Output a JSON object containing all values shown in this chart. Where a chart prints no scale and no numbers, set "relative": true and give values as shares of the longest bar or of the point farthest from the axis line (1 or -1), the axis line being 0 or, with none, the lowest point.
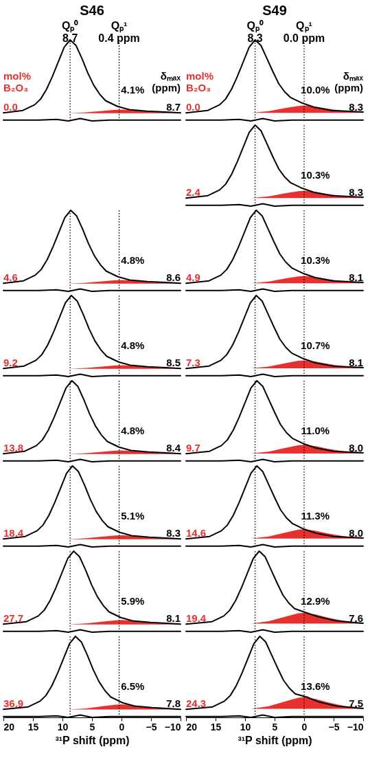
{
  "chart_data": [
    {
      "type": "line",
      "title": "S46",
      "relative": true,
      "xlim": [
        20,
        -10
      ],
      "tick_labels": false,
      "ref_lines": [
        {
          "axis": "x",
          "value": 8.7,
          "label": "Qₚ⁰\n8.7",
          "line_style": "dotted"
        },
        {
          "axis": "x",
          "value": 0.4,
          "label": "Qₚ¹\n0.4 ppm",
          "line_style": "dotted"
        }
      ],
      "annotations": [
        "mol%\nB₂O₃",
        "δₘₐₓ\n(ppm)",
        "0.0",
        "4.1%",
        "8.7"
      ],
      "series": [
        {
          "type": "area",
          "color": "#e8312f",
          "x": [
            9,
            6,
            3,
            1,
            0,
            -2,
            -4,
            -7,
            -10
          ],
          "values": [
            0.095,
            0.105,
            0.125,
            0.138,
            0.14,
            0.133,
            0.12,
            0.105,
            0.096
          ]
        },
        {
          "color": "#000000",
          "x": [
            20,
            16.7,
            14.7,
            13.7,
            12.7,
            11.7,
            10.7,
            9.7,
            8.7,
            7.7,
            6.7,
            5.7,
            4.7,
            3.7,
            2.7,
            0.7,
            -1.3,
            -4.3,
            -10
          ],
          "values": [
            0.1,
            0.13,
            0.2,
            0.27,
            0.39,
            0.55,
            0.73,
            0.91,
            1,
            0.93,
            0.77,
            0.59,
            0.44,
            0.33,
            0.25,
            0.18,
            0.14,
            0.12,
            0.1
          ]
        },
        {
          "color": "#000000",
          "x": [
            20,
            14,
            11,
            9,
            7,
            5,
            2,
            -2,
            -10
          ],
          "values": [
            0.01,
            0.01,
            0.02,
            0,
            0.03,
            0,
            0.01,
            0.01,
            0.01
          ]
        }
      ]
    },
    {
      "type": "line",
      "relative": true,
      "xlim": [
        20,
        -10
      ],
      "tick_labels": false,
      "ref_lines": [
        {
          "axis": "x",
          "value": 8.7,
          "line_style": "dotted"
        },
        {
          "axis": "x",
          "value": 0.4,
          "line_style": "dotted"
        }
      ],
      "annotations": [
        "4.6",
        "4.8%",
        "8.6"
      ],
      "series": [
        {
          "type": "area",
          "color": "#e8312f",
          "x": [
            9,
            6,
            3,
            1,
            0,
            -2,
            -4,
            -7,
            -10
          ],
          "values": [
            0.095,
            0.105,
            0.125,
            0.138,
            0.14,
            0.133,
            0.12,
            0.105,
            0.096
          ]
        },
        {
          "color": "#000000",
          "x": [
            20,
            16.6,
            14.6,
            13.6,
            12.6,
            11.6,
            10.6,
            9.6,
            8.6,
            7.6,
            6.6,
            5.6,
            4.6,
            3.6,
            2.6,
            0.6,
            -1.4,
            -4.4,
            -10
          ],
          "values": [
            0.1,
            0.13,
            0.2,
            0.27,
            0.39,
            0.55,
            0.73,
            0.91,
            1,
            0.93,
            0.77,
            0.59,
            0.44,
            0.33,
            0.25,
            0.18,
            0.14,
            0.12,
            0.1
          ]
        },
        {
          "color": "#000000",
          "x": [
            20,
            14,
            11,
            9,
            7,
            5,
            2,
            -2,
            -10
          ],
          "values": [
            0.01,
            0.01,
            0.02,
            0,
            0.03,
            0,
            0.01,
            0.01,
            0.01
          ]
        }
      ]
    },
    {
      "type": "line",
      "relative": true,
      "xlim": [
        20,
        -10
      ],
      "tick_labels": false,
      "ref_lines": [
        {
          "axis": "x",
          "value": 8.7,
          "line_style": "dotted"
        },
        {
          "axis": "x",
          "value": 0.4,
          "line_style": "dotted"
        }
      ],
      "annotations": [
        "9.2",
        "4.8%",
        "8.5"
      ],
      "series": [
        {
          "type": "area",
          "color": "#e8312f",
          "x": [
            9,
            6,
            3,
            1,
            0,
            -2,
            -4,
            -7,
            -10
          ],
          "values": [
            0.095,
            0.105,
            0.125,
            0.138,
            0.14,
            0.133,
            0.12,
            0.105,
            0.096
          ]
        },
        {
          "color": "#000000",
          "x": [
            20,
            16.5,
            14.5,
            13.5,
            12.5,
            11.5,
            10.5,
            9.5,
            8.5,
            7.5,
            6.5,
            5.5,
            4.5,
            3.5,
            2.5,
            0.5,
            -1.5,
            -4.5,
            -10
          ],
          "values": [
            0.1,
            0.13,
            0.2,
            0.27,
            0.39,
            0.55,
            0.73,
            0.91,
            1,
            0.93,
            0.77,
            0.59,
            0.44,
            0.33,
            0.25,
            0.18,
            0.14,
            0.12,
            0.1
          ]
        },
        {
          "color": "#000000",
          "x": [
            20,
            14,
            11,
            9,
            7,
            5,
            2,
            -2,
            -10
          ],
          "values": [
            0.01,
            0.01,
            0.02,
            0,
            0.03,
            0,
            0.01,
            0.01,
            0.01
          ]
        }
      ]
    },
    {
      "type": "line",
      "relative": true,
      "xlim": [
        20,
        -10
      ],
      "tick_labels": false,
      "ref_lines": [
        {
          "axis": "x",
          "value": 8.7,
          "line_style": "dotted"
        },
        {
          "axis": "x",
          "value": 0.4,
          "line_style": "dotted"
        }
      ],
      "annotations": [
        "13.8",
        "4.8%",
        "8.4"
      ],
      "series": [
        {
          "type": "area",
          "color": "#e8312f",
          "x": [
            9,
            6,
            3,
            1,
            0,
            -2,
            -4,
            -7,
            -10
          ],
          "values": [
            0.095,
            0.105,
            0.125,
            0.138,
            0.14,
            0.133,
            0.12,
            0.105,
            0.096
          ]
        },
        {
          "color": "#000000",
          "x": [
            20,
            16.4,
            14.4,
            13.4,
            12.4,
            11.4,
            10.4,
            9.4,
            8.4,
            7.4,
            6.4,
            5.4,
            4.4,
            3.4,
            2.4,
            0.4,
            -1.6,
            -4.6,
            -10
          ],
          "values": [
            0.1,
            0.13,
            0.2,
            0.27,
            0.39,
            0.55,
            0.73,
            0.91,
            1,
            0.93,
            0.77,
            0.59,
            0.44,
            0.33,
            0.25,
            0.18,
            0.14,
            0.12,
            0.1
          ]
        },
        {
          "color": "#000000",
          "x": [
            20,
            14,
            11,
            9,
            7,
            5,
            2,
            -2,
            -10
          ],
          "values": [
            0.01,
            0.01,
            0.02,
            0,
            0.03,
            0,
            0.01,
            0.01,
            0.01
          ]
        }
      ]
    },
    {
      "type": "line",
      "relative": true,
      "xlim": [
        20,
        -10
      ],
      "tick_labels": false,
      "ref_lines": [
        {
          "axis": "x",
          "value": 8.7,
          "line_style": "dotted"
        },
        {
          "axis": "x",
          "value": 0.4,
          "line_style": "dotted"
        }
      ],
      "annotations": [
        "18.4",
        "5.1%",
        "8.3"
      ],
      "series": [
        {
          "type": "area",
          "color": "#e8312f",
          "x": [
            9,
            6,
            3,
            1,
            0,
            -2,
            -4,
            -7,
            -10
          ],
          "values": [
            0.096,
            0.107,
            0.129,
            0.142,
            0.145,
            0.137,
            0.123,
            0.107,
            0.097
          ]
        },
        {
          "color": "#000000",
          "x": [
            20,
            16.3,
            14.3,
            13.3,
            12.3,
            11.3,
            10.3,
            9.3,
            8.3,
            7.3,
            6.3,
            5.3,
            4.3,
            3.3,
            2.3,
            0.3,
            -1.7,
            -4.7,
            -10
          ],
          "values": [
            0.1,
            0.13,
            0.2,
            0.27,
            0.39,
            0.55,
            0.73,
            0.91,
            1,
            0.93,
            0.77,
            0.59,
            0.44,
            0.33,
            0.25,
            0.18,
            0.14,
            0.12,
            0.1
          ]
        },
        {
          "color": "#000000",
          "x": [
            20,
            14,
            11,
            9,
            7,
            5,
            2,
            -2,
            -10
          ],
          "values": [
            0.01,
            0.01,
            0.02,
            0,
            0.03,
            0,
            0.01,
            0.01,
            0.01
          ]
        }
      ]
    },
    {
      "type": "line",
      "relative": true,
      "xlim": [
        20,
        -10
      ],
      "tick_labels": false,
      "ref_lines": [
        {
          "axis": "x",
          "value": 8.7,
          "line_style": "dotted"
        },
        {
          "axis": "x",
          "value": 0.4,
          "line_style": "dotted"
        }
      ],
      "annotations": [
        "27.7",
        "5.9%",
        "8.1"
      ],
      "series": [
        {
          "type": "area",
          "color": "#e8312f",
          "x": [
            9,
            6,
            3,
            1,
            0,
            -2,
            -4,
            -7,
            -10
          ],
          "values": [
            0.096,
            0.108,
            0.132,
            0.147,
            0.15,
            0.141,
            0.126,
            0.108,
            0.097
          ]
        },
        {
          "color": "#000000",
          "x": [
            20,
            16.1,
            14.1,
            13.1,
            12.1,
            11.1,
            10.1,
            9.1,
            8.1,
            7.1,
            6.1,
            5.1,
            4.1,
            3.1,
            2.1,
            0.1,
            -1.9,
            -4.9,
            -10
          ],
          "values": [
            0.1,
            0.13,
            0.2,
            0.27,
            0.39,
            0.55,
            0.73,
            0.91,
            1,
            0.93,
            0.77,
            0.59,
            0.44,
            0.33,
            0.25,
            0.18,
            0.14,
            0.12,
            0.1
          ]
        },
        {
          "color": "#000000",
          "x": [
            20,
            14,
            11,
            9,
            7,
            5,
            2,
            -2,
            -10
          ],
          "values": [
            0.01,
            0.01,
            0.02,
            0,
            0.03,
            0,
            0.01,
            0.01,
            0.01
          ]
        }
      ]
    },
    {
      "type": "line",
      "relative": true,
      "xlim": [
        20,
        -10
      ],
      "xticks": [
        20,
        15,
        10,
        5,
        0,
        -5,
        -10
      ],
      "xlabel": "³¹P shift (ppm)",
      "ref_lines": [
        {
          "axis": "x",
          "value": 8.7,
          "line_style": "dotted"
        },
        {
          "axis": "x",
          "value": 0.4,
          "line_style": "dotted"
        }
      ],
      "annotations": [
        "36.9",
        "6.5%",
        "7.8"
      ],
      "series": [
        {
          "type": "area",
          "color": "#e8312f",
          "x": [
            9,
            6,
            3,
            1,
            0,
            -2,
            -4,
            -7,
            -10
          ],
          "values": [
            0.097,
            0.111,
            0.139,
            0.157,
            0.16,
            0.15,
            0.132,
            0.111,
            0.098
          ]
        },
        {
          "color": "#000000",
          "x": [
            20,
            15.8,
            13.8,
            12.8,
            11.8,
            10.8,
            9.8,
            8.8,
            7.8,
            6.8,
            5.8,
            4.8,
            3.8,
            2.8,
            1.8,
            -0.2,
            -2.2,
            -5.2,
            -10
          ],
          "values": [
            0.1,
            0.13,
            0.2,
            0.27,
            0.39,
            0.55,
            0.73,
            0.91,
            1,
            0.93,
            0.77,
            0.59,
            0.44,
            0.33,
            0.25,
            0.18,
            0.14,
            0.12,
            0.1
          ]
        },
        {
          "color": "#000000",
          "x": [
            20,
            14,
            11,
            9,
            7,
            5,
            2,
            -2,
            -10
          ],
          "values": [
            0.01,
            0.01,
            0.02,
            0,
            0.03,
            0,
            0.01,
            0.01,
            0.01
          ]
        }
      ]
    },
    {
      "type": "line",
      "title": "S49",
      "relative": true,
      "xlim": [
        20,
        -10
      ],
      "tick_labels": false,
      "ref_lines": [
        {
          "axis": "x",
          "value": 8.3,
          "label": "Qₚ⁰\n8.3",
          "line_style": "dotted"
        },
        {
          "axis": "x",
          "value": 0.0,
          "label": "Qₚ¹\n0.0 ppm",
          "line_style": "dotted"
        }
      ],
      "annotations": [
        "mol%\nB₂O₃",
        "δₘₐₓ\n(ppm)",
        "0.0",
        "10.0%",
        "8.3"
      ],
      "series": [
        {
          "type": "area",
          "color": "#e8312f",
          "x": [
            9,
            6,
            3,
            1,
            0,
            -2,
            -4,
            -7,
            -10
          ],
          "values": [
            0.1,
            0.12,
            0.16,
            0.185,
            0.19,
            0.175,
            0.15,
            0.12,
            0.102
          ]
        },
        {
          "color": "#000000",
          "x": [
            20,
            16.3,
            14.3,
            13.3,
            12.3,
            11.3,
            10.3,
            9.3,
            8.3,
            7.3,
            6.3,
            5.3,
            4.3,
            3.3,
            2.3,
            0.3,
            -1.7,
            -4.7,
            -10
          ],
          "values": [
            0.1,
            0.13,
            0.2,
            0.27,
            0.39,
            0.55,
            0.73,
            0.91,
            1,
            0.93,
            0.77,
            0.61,
            0.46,
            0.36,
            0.29,
            0.22,
            0.17,
            0.13,
            0.11
          ]
        },
        {
          "color": "#000000",
          "x": [
            20,
            14,
            11,
            9,
            7,
            5,
            2,
            -2,
            -10
          ],
          "values": [
            0.01,
            0.01,
            0.02,
            0,
            0.03,
            0,
            0.01,
            0.01,
            0.01
          ]
        }
      ]
    },
    {
      "type": "line",
      "relative": true,
      "xlim": [
        20,
        -10
      ],
      "tick_labels": false,
      "ref_lines": [
        {
          "axis": "x",
          "value": 8.3,
          "line_style": "dotted"
        },
        {
          "axis": "x",
          "value": 0.0,
          "line_style": "dotted"
        }
      ],
      "annotations": [
        "2.4",
        "10.3%",
        "8.3"
      ],
      "series": [
        {
          "type": "area",
          "color": "#e8312f",
          "x": [
            9,
            6,
            3,
            1,
            0,
            -2,
            -4,
            -7,
            -10
          ],
          "values": [
            0.1,
            0.12,
            0.16,
            0.185,
            0.19,
            0.175,
            0.15,
            0.12,
            0.102
          ]
        },
        {
          "color": "#000000",
          "x": [
            20,
            16.3,
            14.3,
            13.3,
            12.3,
            11.3,
            10.3,
            9.3,
            8.3,
            7.3,
            6.3,
            5.3,
            4.3,
            3.3,
            2.3,
            0.3,
            -1.7,
            -4.7,
            -10
          ],
          "values": [
            0.1,
            0.13,
            0.2,
            0.27,
            0.39,
            0.55,
            0.73,
            0.91,
            1,
            0.93,
            0.77,
            0.61,
            0.46,
            0.36,
            0.29,
            0.22,
            0.17,
            0.13,
            0.11
          ]
        },
        {
          "color": "#000000",
          "x": [
            20,
            14,
            11,
            9,
            7,
            5,
            2,
            -2,
            -10
          ],
          "values": [
            0.01,
            0.01,
            0.02,
            0,
            0.03,
            0,
            0.01,
            0.01,
            0.01
          ]
        }
      ]
    },
    {
      "type": "line",
      "relative": true,
      "xlim": [
        20,
        -10
      ],
      "tick_labels": false,
      "ref_lines": [
        {
          "axis": "x",
          "value": 8.3,
          "line_style": "dotted"
        },
        {
          "axis": "x",
          "value": 0.0,
          "line_style": "dotted"
        }
      ],
      "annotations": [
        "4.9",
        "10.3%",
        "8.1"
      ],
      "series": [
        {
          "type": "area",
          "color": "#e8312f",
          "x": [
            9,
            6,
            3,
            1,
            0,
            -2,
            -4,
            -7,
            -10
          ],
          "values": [
            0.1,
            0.12,
            0.16,
            0.185,
            0.19,
            0.175,
            0.15,
            0.12,
            0.102
          ]
        },
        {
          "color": "#000000",
          "x": [
            20,
            16.1,
            14.1,
            13.1,
            12.1,
            11.1,
            10.1,
            9.1,
            8.1,
            7.1,
            6.1,
            5.1,
            4.1,
            3.1,
            2.1,
            0.1,
            -1.9,
            -4.9,
            -10
          ],
          "values": [
            0.1,
            0.13,
            0.2,
            0.27,
            0.39,
            0.55,
            0.73,
            0.91,
            1,
            0.93,
            0.77,
            0.61,
            0.46,
            0.36,
            0.29,
            0.22,
            0.17,
            0.13,
            0.11
          ]
        },
        {
          "color": "#000000",
          "x": [
            20,
            14,
            11,
            9,
            7,
            5,
            2,
            -2,
            -10
          ],
          "values": [
            0.01,
            0.01,
            0.02,
            0,
            0.03,
            0,
            0.01,
            0.01,
            0.01
          ]
        }
      ]
    },
    {
      "type": "line",
      "relative": true,
      "xlim": [
        20,
        -10
      ],
      "tick_labels": false,
      "ref_lines": [
        {
          "axis": "x",
          "value": 8.3,
          "line_style": "dotted"
        },
        {
          "axis": "x",
          "value": 0.0,
          "line_style": "dotted"
        }
      ],
      "annotations": [
        "7.3",
        "10.7%",
        "8.1"
      ],
      "series": [
        {
          "type": "area",
          "color": "#e8312f",
          "x": [
            9,
            6,
            3,
            1,
            0,
            -2,
            -4,
            -7,
            -10
          ],
          "values": [
            0.101,
            0.123,
            0.167,
            0.195,
            0.2,
            0.184,
            0.156,
            0.123,
            0.102
          ]
        },
        {
          "color": "#000000",
          "x": [
            20,
            16.1,
            14.1,
            13.1,
            12.1,
            11.1,
            10.1,
            9.1,
            8.1,
            7.1,
            6.1,
            5.1,
            4.1,
            3.1,
            2.1,
            0.1,
            -1.9,
            -4.9,
            -10
          ],
          "values": [
            0.1,
            0.13,
            0.2,
            0.27,
            0.39,
            0.55,
            0.73,
            0.91,
            1,
            0.93,
            0.77,
            0.61,
            0.46,
            0.36,
            0.29,
            0.22,
            0.17,
            0.13,
            0.11
          ]
        },
        {
          "color": "#000000",
          "x": [
            20,
            14,
            11,
            9,
            7,
            5,
            2,
            -2,
            -10
          ],
          "values": [
            0.01,
            0.01,
            0.02,
            0,
            0.03,
            0,
            0.01,
            0.01,
            0.01
          ]
        }
      ]
    },
    {
      "type": "line",
      "relative": true,
      "xlim": [
        20,
        -10
      ],
      "tick_labels": false,
      "ref_lines": [
        {
          "axis": "x",
          "value": 8.3,
          "line_style": "dotted"
        },
        {
          "axis": "x",
          "value": 0.0,
          "line_style": "dotted"
        }
      ],
      "annotations": [
        "9.7",
        "11.0%",
        "8.0"
      ],
      "series": [
        {
          "type": "area",
          "color": "#e8312f",
          "x": [
            9,
            6,
            3,
            1,
            0,
            -2,
            -4,
            -7,
            -10
          ],
          "values": [
            0.102,
            0.126,
            0.174,
            0.204,
            0.21,
            0.192,
            0.162,
            0.126,
            0.104
          ]
        },
        {
          "color": "#000000",
          "x": [
            20,
            16,
            14,
            13,
            12,
            11,
            10,
            9,
            8,
            7,
            6,
            5,
            4,
            3,
            2,
            0,
            -2,
            -5,
            -10
          ],
          "values": [
            0.1,
            0.13,
            0.2,
            0.27,
            0.39,
            0.55,
            0.73,
            0.91,
            1,
            0.93,
            0.77,
            0.61,
            0.46,
            0.36,
            0.29,
            0.22,
            0.17,
            0.13,
            0.11
          ]
        },
        {
          "color": "#000000",
          "x": [
            20,
            14,
            11,
            9,
            7,
            5,
            2,
            -2,
            -10
          ],
          "values": [
            0.01,
            0.01,
            0.02,
            0,
            0.03,
            0,
            0.01,
            0.01,
            0.01
          ]
        }
      ]
    },
    {
      "type": "line",
      "relative": true,
      "xlim": [
        20,
        -10
      ],
      "tick_labels": false,
      "ref_lines": [
        {
          "axis": "x",
          "value": 8.3,
          "line_style": "dotted"
        },
        {
          "axis": "x",
          "value": 0.0,
          "line_style": "dotted"
        }
      ],
      "annotations": [
        "14.6",
        "11.3%",
        "8.0"
      ],
      "series": [
        {
          "type": "area",
          "color": "#e8312f",
          "x": [
            9,
            6,
            3,
            1,
            0,
            -2,
            -4,
            -7,
            -10
          ],
          "values": [
            0.103,
            0.129,
            0.181,
            0.214,
            0.22,
            0.2,
            0.168,
            0.129,
            0.106
          ]
        },
        {
          "color": "#000000",
          "x": [
            20,
            16,
            14,
            13,
            12,
            11,
            10,
            9,
            8,
            7,
            6,
            5,
            4,
            3,
            2,
            0,
            -2,
            -5,
            -10
          ],
          "values": [
            0.1,
            0.13,
            0.2,
            0.27,
            0.39,
            0.55,
            0.73,
            0.91,
            1,
            0.93,
            0.77,
            0.61,
            0.46,
            0.36,
            0.29,
            0.22,
            0.17,
            0.13,
            0.11
          ]
        },
        {
          "color": "#000000",
          "x": [
            20,
            14,
            11,
            9,
            7,
            5,
            2,
            -2,
            -10
          ],
          "values": [
            0.01,
            0.01,
            0.02,
            0,
            0.03,
            0,
            0.01,
            0.01,
            0.01
          ]
        }
      ]
    },
    {
      "type": "line",
      "relative": true,
      "xlim": [
        20,
        -10
      ],
      "tick_labels": false,
      "ref_lines": [
        {
          "axis": "x",
          "value": 8.3,
          "line_style": "dotted"
        },
        {
          "axis": "x",
          "value": 0.0,
          "line_style": "dotted"
        }
      ],
      "annotations": [
        "19.4",
        "12.9%",
        "7.6"
      ],
      "series": [
        {
          "type": "area",
          "color": "#e8312f",
          "x": [
            9,
            6,
            3,
            1,
            0,
            -2,
            -4,
            -7,
            -10
          ],
          "values": [
            0.105,
            0.135,
            0.195,
            0.233,
            0.24,
            0.218,
            0.18,
            0.135,
            0.108
          ]
        },
        {
          "color": "#000000",
          "x": [
            20,
            15.6,
            13.6,
            12.6,
            11.6,
            10.6,
            9.6,
            8.6,
            7.6,
            6.6,
            5.6,
            4.6,
            3.6,
            2.6,
            1.6,
            -0.4,
            -2.4,
            -5.4,
            -10
          ],
          "values": [
            0.1,
            0.13,
            0.2,
            0.27,
            0.39,
            0.55,
            0.73,
            0.91,
            1,
            0.93,
            0.77,
            0.61,
            0.46,
            0.36,
            0.29,
            0.24,
            0.19,
            0.14,
            0.11
          ]
        },
        {
          "color": "#000000",
          "x": [
            20,
            14,
            11,
            9,
            7,
            5,
            2,
            -2,
            -10
          ],
          "values": [
            0.01,
            0.01,
            0.02,
            0,
            0.03,
            0,
            0.01,
            0.01,
            0.01
          ]
        }
      ]
    },
    {
      "type": "line",
      "relative": true,
      "xlim": [
        20,
        -10
      ],
      "xticks": [
        20,
        15,
        10,
        5,
        0,
        -5,
        -10
      ],
      "xlabel": "³¹P shift (ppm)",
      "ref_lines": [
        {
          "axis": "x",
          "value": 8.3,
          "line_style": "dotted"
        },
        {
          "axis": "x",
          "value": 0.0,
          "line_style": "dotted"
        }
      ],
      "annotations": [
        "24.3",
        "13.6%",
        "7.5"
      ],
      "series": [
        {
          "type": "area",
          "color": "#e8312f",
          "x": [
            9,
            6,
            3,
            1,
            0,
            -2,
            -4,
            -7,
            -10
          ],
          "values": [
            0.106,
            0.138,
            0.202,
            0.242,
            0.25,
            0.226,
            0.186,
            0.138,
            0.109
          ]
        },
        {
          "color": "#000000",
          "x": [
            20,
            15.5,
            13.5,
            12.5,
            11.5,
            10.5,
            9.5,
            8.5,
            7.5,
            6.5,
            5.5,
            4.5,
            3.5,
            2.5,
            1.5,
            -0.5,
            -2.5,
            -5.5,
            -10
          ],
          "values": [
            0.1,
            0.13,
            0.2,
            0.27,
            0.39,
            0.55,
            0.73,
            0.91,
            1,
            0.93,
            0.77,
            0.61,
            0.46,
            0.36,
            0.29,
            0.25,
            0.19,
            0.14,
            0.11
          ]
        },
        {
          "color": "#000000",
          "x": [
            20,
            14,
            11,
            9,
            7,
            5,
            2,
            -2,
            -10
          ],
          "values": [
            0.01,
            0.01,
            0.02,
            0,
            0.03,
            0,
            0.01,
            0.01,
            0.01
          ]
        }
      ]
    }
  ]
}
